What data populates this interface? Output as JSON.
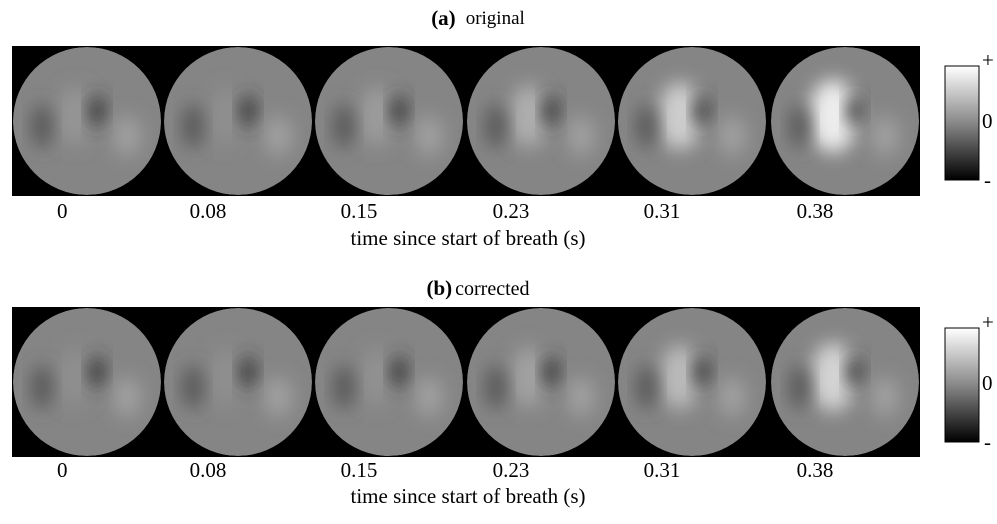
{
  "panels": [
    {
      "letter": "(a)",
      "title": "original",
      "times": [
        "0",
        "0.08",
        "0.15",
        "0.23",
        "0.31",
        "0.38"
      ],
      "axis_label": "time since start of breath (s)",
      "colorbar": {
        "top": "+",
        "mid": "0",
        "bottom": "-"
      }
    },
    {
      "letter": "(b)",
      "title": "corrected",
      "times": [
        "0",
        "0.08",
        "0.15",
        "0.23",
        "0.31",
        "0.38"
      ],
      "axis_label": "time since start of breath (s)",
      "colorbar": {
        "top": "+",
        "mid": "0",
        "bottom": "-"
      }
    }
  ]
}
